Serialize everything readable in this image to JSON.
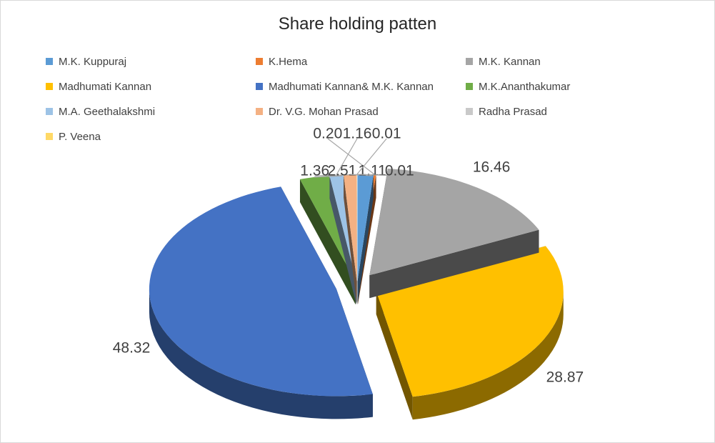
{
  "chart_data": {
    "type": "pie",
    "title": "Share holding patten",
    "legend_position": "top",
    "three_d": true,
    "exploded": true,
    "slices": [
      {
        "name": "M.K. Kuppuraj",
        "value": 1.36,
        "label": "1.36",
        "color": "#5b9bd5"
      },
      {
        "name": "K.Hema",
        "value": 0.2,
        "label": "0.20",
        "color": "#ed7d31"
      },
      {
        "name": "M.K. Kannan",
        "value": 16.46,
        "label": "16.46",
        "color": "#a5a5a5"
      },
      {
        "name": "Madhumati Kannan",
        "value": 28.87,
        "label": "28.87",
        "color": "#ffc000"
      },
      {
        "name": "Madhumati Kannan& M.K. Kannan",
        "value": 48.32,
        "label": "48.32",
        "color": "#4472c4"
      },
      {
        "name": "M.K.Ananthakumar",
        "value": 2.51,
        "label": "2.51",
        "color": "#70ad47"
      },
      {
        "name": "M.A. Geethalakshmi",
        "value": 1.16,
        "label": "1.16",
        "color": "#9dc3e6"
      },
      {
        "name": "Dr. V.G. Mohan Prasad",
        "value": 1.11,
        "label": "1.11",
        "color": "#f4b183"
      },
      {
        "name": "Radha Prasad",
        "value": 0.01,
        "label": "0.01",
        "color": "#c9c9c9"
      },
      {
        "name": "P. Veena",
        "value": 0.01,
        "label": "0.01",
        "color": "#ffd966"
      }
    ]
  }
}
